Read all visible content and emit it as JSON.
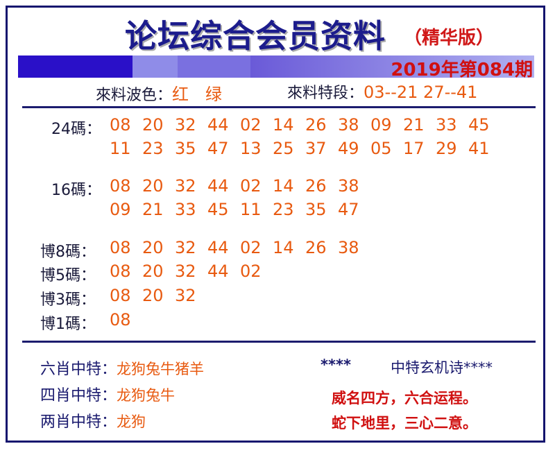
{
  "header": {
    "title": "论坛综合会员资料",
    "edition": "（精华版）",
    "issue": "2019年第084期"
  },
  "info": {
    "wave_label": "來料波色：",
    "wave_value": "红　绿",
    "segment_label": "來料特段：",
    "segment_value": "03--21  27--41"
  },
  "codes": [
    {
      "label": "24碼：",
      "lines": [
        [
          "08",
          "20",
          "32",
          "44",
          "02",
          "14",
          "26",
          "38",
          "09",
          "21",
          "33",
          "45"
        ],
        [
          "11",
          "23",
          "35",
          "47",
          "13",
          "25",
          "37",
          "49",
          "05",
          "17",
          "29",
          "41"
        ]
      ]
    },
    {
      "label": "16碼：",
      "lines": [
        [
          "08",
          "20",
          "32",
          "44",
          "02",
          "14",
          "26",
          "38"
        ],
        [
          "09",
          "21",
          "33",
          "45",
          "11",
          "23",
          "35",
          "47"
        ]
      ]
    },
    {
      "label": "博8碼：",
      "lines": [
        [
          "08",
          "20",
          "32",
          "44",
          "02",
          "14",
          "26",
          "38"
        ]
      ]
    },
    {
      "label": "博5碼：",
      "lines": [
        [
          "08",
          "20",
          "32",
          "44",
          "02"
        ]
      ]
    },
    {
      "label": "博3碼：",
      "lines": [
        [
          "08",
          "20",
          "32"
        ]
      ]
    },
    {
      "label": "博1碼：",
      "lines": [
        [
          "08"
        ]
      ]
    }
  ],
  "zodiac": [
    {
      "label": "六肖中特：",
      "value": "龙狗兔牛猪羊"
    },
    {
      "label": "四肖中特：",
      "value": "龙狗兔牛"
    },
    {
      "label": "两肖中特：",
      "value": "龙狗"
    }
  ],
  "poem": {
    "stars": "****",
    "title": "中特玄机诗****",
    "lines": [
      "威名四方，六合运程。",
      "蛇下地里，三心二意。"
    ]
  }
}
